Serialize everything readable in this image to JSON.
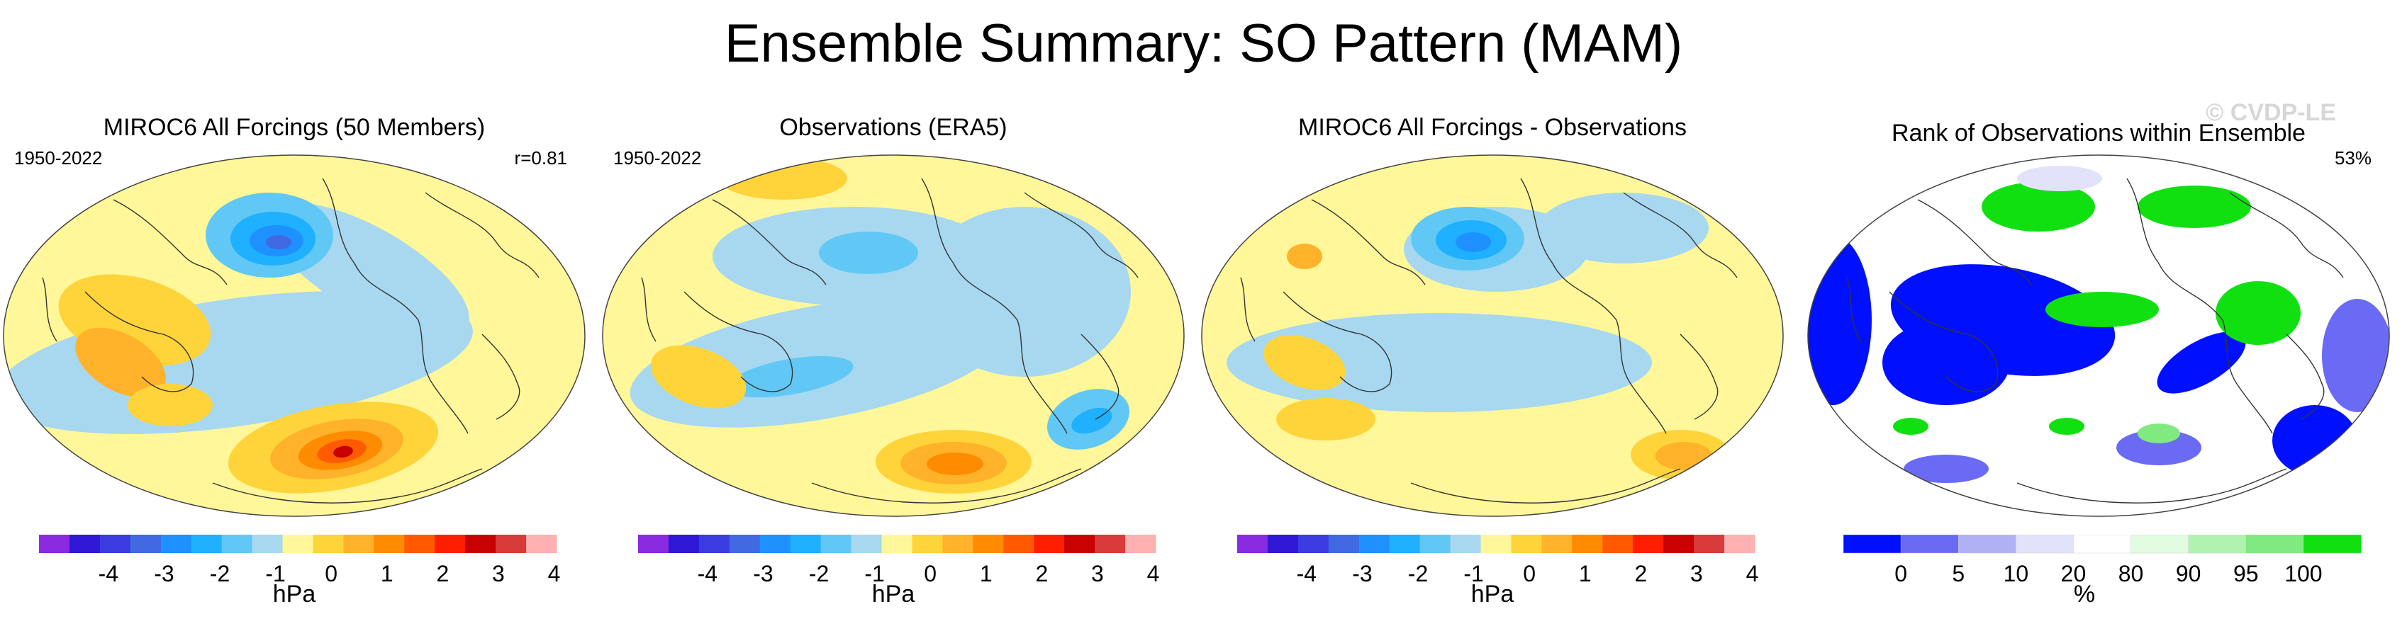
{
  "title": "Ensemble Summary: SO Pattern (MAM)",
  "panels": [
    {
      "title": "MIROC6 All Forcings (50 Members)",
      "left_label": "1950-2022",
      "right_label": "r=0.81",
      "units": "hPa",
      "kind": "model"
    },
    {
      "title": "Observations (ERA5)",
      "left_label": "1950-2022",
      "right_label": "",
      "units": "hPa",
      "kind": "obs"
    },
    {
      "title": "MIROC6 All Forcings - Observations",
      "left_label": "",
      "right_label": "",
      "units": "hPa",
      "kind": "diff"
    },
    {
      "title": "Rank of Observations within Ensemble",
      "left_label": "",
      "right_label": "53%",
      "units": "%",
      "kind": "rank",
      "watermark": "© CVDP-LE"
    }
  ],
  "chart_data": {
    "type": "heatmap",
    "diverging_colorbar": {
      "ticks": [
        "-4",
        "-3",
        "-2",
        "-1",
        "0",
        "1",
        "2",
        "3",
        "4"
      ],
      "colors": [
        "#8a2be2",
        "#2f19d6",
        "#3a3ce0",
        "#4169e1",
        "#1e90ff",
        "#1fb0ff",
        "#61c8f5",
        "#a7d8f0",
        "#fff799",
        "#ffd43a",
        "#ffb22a",
        "#ff8c00",
        "#ff5a00",
        "#ff1e00",
        "#c80000",
        "#d93a3a",
        "#ffb0b0"
      ]
    },
    "rank_colorbar": {
      "ticks": [
        "0",
        "5",
        "10",
        "20",
        "80",
        "90",
        "95",
        "100"
      ],
      "colors": [
        "#0010ff",
        "#6a6af5",
        "#b0b0f5",
        "#e2e2fb",
        "#ffffff",
        "#e0fbe0",
        "#b0f3b0",
        "#80ea80",
        "#10e010"
      ]
    }
  }
}
